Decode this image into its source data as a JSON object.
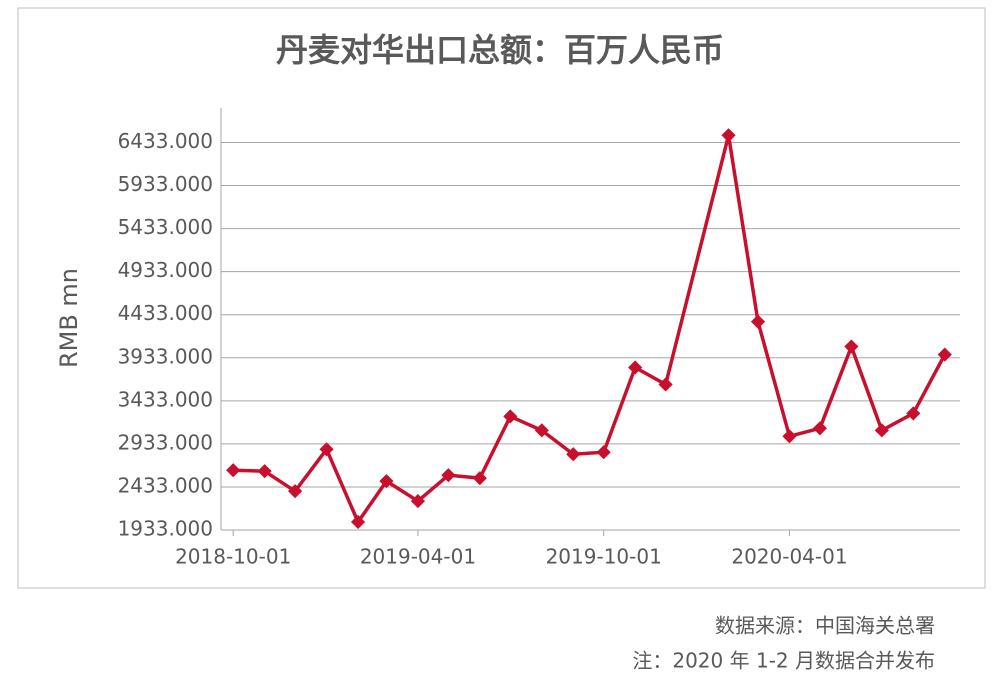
{
  "chart_data": {
    "type": "line",
    "title": "丹麦对华出口总额：百万人民币",
    "y_label": "RMB mn",
    "source": "数据来源：中国海关总署",
    "note": "注：2020 年 1-2 月数据合并发布",
    "x": [
      "2018-10-01",
      "2018-11-01",
      "2018-12-01",
      "2019-01-01",
      "2019-02-01",
      "2019-03-01",
      "2019-04-01",
      "2019-05-01",
      "2019-06-01",
      "2019-07-01",
      "2019-08-01",
      "2019-09-01",
      "2019-10-01",
      "2019-11-01",
      "2019-12-01",
      "2020-02-01",
      "2020-03-01",
      "2020-04-01",
      "2020-05-01",
      "2020-06-01",
      "2020-07-01",
      "2020-08-01",
      "2020-09-01"
    ],
    "series": [
      {
        "name": "丹麦对华出口总额",
        "color": "#c8102e",
        "values": [
          2627,
          2616,
          2384,
          2870,
          2026,
          2500,
          2269,
          2570,
          2535,
          3252,
          3090,
          2813,
          2836,
          3820,
          3623,
          6516,
          4352,
          3021,
          3114,
          4063,
          3090,
          3287,
          3970
        ]
      }
    ],
    "xlim": [
      "2018-09-19",
      "2020-09-16"
    ],
    "xticks": [
      "2018-10-01",
      "2019-04-01",
      "2019-10-01",
      "2020-04-01"
    ],
    "ylim": [
      1933,
      6833
    ],
    "yticks": [
      {
        "value": 1933,
        "label": "1933.000"
      },
      {
        "value": 2433,
        "label": "2433.000"
      },
      {
        "value": 2933,
        "label": "2933.000"
      },
      {
        "value": 3433,
        "label": "3433.000"
      },
      {
        "value": 3933,
        "label": "3933.000"
      },
      {
        "value": 4433,
        "label": "4433.000"
      },
      {
        "value": 4933,
        "label": "4933.000"
      },
      {
        "value": 5433,
        "label": "5433.000"
      },
      {
        "value": 5933,
        "label": "5933.000"
      },
      {
        "value": 6433,
        "label": "6433.000"
      }
    ],
    "grid": true
  }
}
